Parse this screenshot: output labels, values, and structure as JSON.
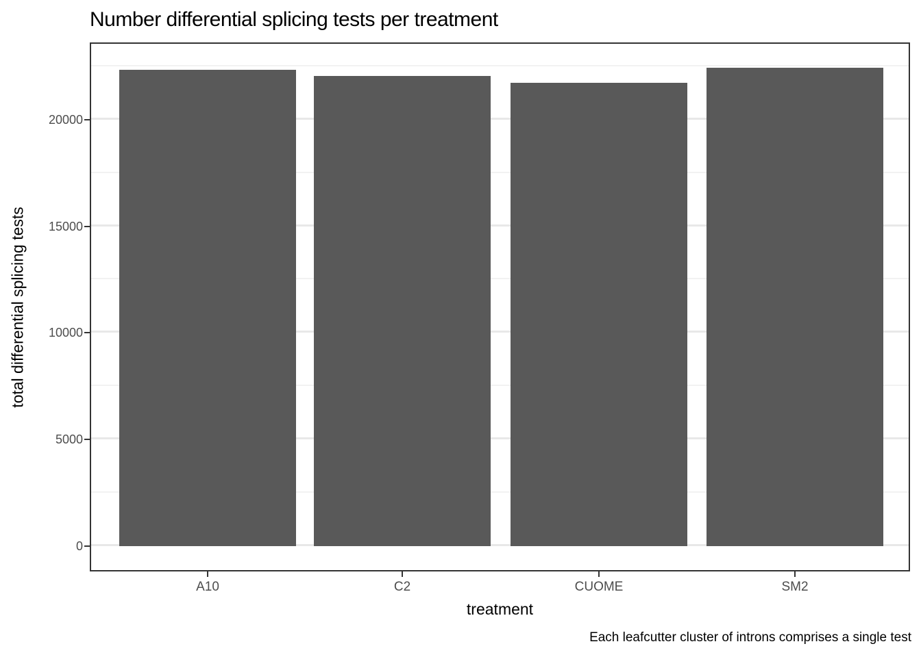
{
  "title": "Number differential splicing tests per treatment",
  "caption": "Each leafcutter cluster of introns comprises a single test",
  "chart_data": {
    "type": "bar",
    "categories": [
      "A10",
      "C2",
      "CUOME",
      "SM2"
    ],
    "values": [
      22320,
      22040,
      21720,
      22420
    ],
    "title": "Number differential splicing tests per treatment",
    "xlabel": "treatment",
    "ylabel": "total differential splicing tests",
    "caption": "Each leafcutter cluster of introns comprises a single test",
    "ylim": [
      -1120,
      23550
    ],
    "yticks": [
      0,
      5000,
      10000,
      15000,
      20000
    ],
    "ytick_labels": [
      "0",
      "5000",
      "10000",
      "15000",
      "20000"
    ],
    "yticks_minor": [
      2500,
      7500,
      12500,
      17500,
      22500
    ],
    "grid": "major and minor horizontal gridlines, white panel, dark panel border",
    "legend": "none",
    "bar_color": "#595959",
    "panel_border_color": "#333333",
    "gridline_major_color": "#e8e8e8",
    "gridline_minor_color": "#f2f2f2",
    "tick_label_color": "#4d4d4d",
    "text_color": "#000000"
  }
}
